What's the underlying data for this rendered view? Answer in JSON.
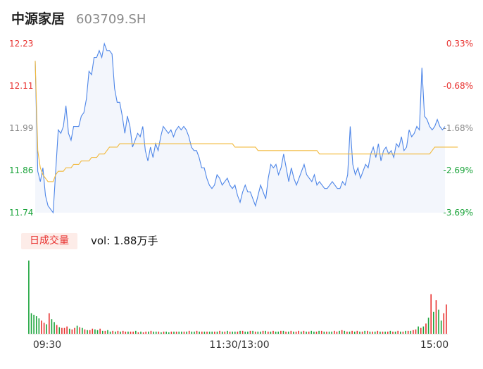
{
  "header": {
    "name": "中源家居",
    "code": "603709.SH"
  },
  "volume_badge": "日成交量",
  "volume_text": "vol: 1.88万手",
  "colors": {
    "price_line": "#4e86e8",
    "avg_line": "#f2b93b",
    "up": "#e8312f",
    "down": "#1aa33a",
    "neutral": "#8a8a8a",
    "fill": "#f3f6fc"
  },
  "chart_data": [
    {
      "type": "line",
      "x_range": [
        "09:30",
        "15:00"
      ],
      "x_tick_labels": [
        "09:30",
        "11:30/13:00",
        "15:00"
      ],
      "y_tick_labels": [
        "12.23",
        "12.11",
        "11.99",
        "11.86",
        "11.74"
      ],
      "y2_tick_labels": [
        "0.33%",
        "-0.68%",
        "-1.68%",
        "-2.69%",
        "-3.69%"
      ],
      "ylim": [
        11.74,
        12.23
      ],
      "series": [
        {
          "values": [
            12.18,
            11.86,
            11.83,
            11.87,
            11.79,
            11.76,
            11.75,
            11.74,
            11.86,
            11.98,
            11.97,
            11.99,
            12.05,
            11.97,
            11.95,
            11.99,
            11.99,
            11.99,
            12.02,
            12.03,
            12.07,
            12.15,
            12.14,
            12.19,
            12.19,
            12.21,
            12.19,
            12.23,
            12.21,
            12.21,
            12.2,
            12.1,
            12.06,
            12.06,
            12.02,
            11.97,
            12.02,
            11.99,
            11.93,
            11.95,
            11.97,
            11.96,
            11.99,
            11.92,
            11.89,
            11.93,
            11.9,
            11.94,
            11.92,
            11.96,
            11.99,
            11.98,
            11.97,
            11.98,
            11.96,
            11.98,
            11.99,
            11.98,
            11.99,
            11.98,
            11.96,
            11.93,
            11.92,
            11.92,
            11.9,
            11.87,
            11.87,
            11.84,
            11.82,
            11.81,
            11.82,
            11.85,
            11.84,
            11.82,
            11.83,
            11.84,
            11.82,
            11.81,
            11.82,
            11.79,
            11.77,
            11.8,
            11.82,
            11.8,
            11.8,
            11.78,
            11.76,
            11.79,
            11.82,
            11.8,
            11.78,
            11.84,
            11.88,
            11.87,
            11.88,
            11.85,
            11.87,
            11.91,
            11.87,
            11.83,
            11.87,
            11.84,
            11.82,
            11.84,
            11.86,
            11.88,
            11.85,
            11.84,
            11.83,
            11.85,
            11.82,
            11.83,
            11.82,
            11.81,
            11.81,
            11.82,
            11.83,
            11.82,
            11.81,
            11.81,
            11.83,
            11.82,
            11.85,
            11.99,
            11.88,
            11.85,
            11.87,
            11.84,
            11.86,
            11.88,
            11.87,
            11.91,
            11.93,
            11.9,
            11.94,
            11.89,
            11.92,
            11.93,
            11.91,
            11.92,
            11.9,
            11.94,
            11.93,
            11.96,
            11.92,
            11.93,
            11.98,
            11.96,
            11.97,
            11.99,
            11.98,
            12.16,
            12.02,
            12.01,
            11.99,
            11.98,
            11.99,
            12.01,
            11.99,
            11.98,
            11.99
          ],
          "color": "#4e86e8"
        },
        {
          "values": [
            12.18,
            11.92,
            11.87,
            11.85,
            11.84,
            11.83,
            11.83,
            11.83,
            11.85,
            11.86,
            11.86,
            11.86,
            11.87,
            11.87,
            11.87,
            11.88,
            11.88,
            11.88,
            11.89,
            11.89,
            11.89,
            11.89,
            11.9,
            11.9,
            11.9,
            11.91,
            11.91,
            11.91,
            11.92,
            11.93,
            11.93,
            11.93,
            11.93,
            11.94,
            11.94,
            11.94,
            11.94,
            11.94,
            11.94,
            11.94,
            11.94,
            11.94,
            11.94,
            11.94,
            11.94,
            11.94,
            11.94,
            11.94,
            11.94,
            11.94,
            11.94,
            11.94,
            11.94,
            11.94,
            11.94,
            11.94,
            11.94,
            11.94,
            11.94,
            11.94,
            11.94,
            11.94,
            11.94,
            11.94,
            11.94,
            11.94,
            11.94,
            11.94,
            11.94,
            11.94,
            11.94,
            11.94,
            11.94,
            11.94,
            11.94,
            11.94,
            11.94,
            11.94,
            11.93,
            11.93,
            11.93,
            11.93,
            11.93,
            11.93,
            11.93,
            11.93,
            11.93,
            11.92,
            11.92,
            11.92,
            11.92,
            11.92,
            11.92,
            11.92,
            11.92,
            11.92,
            11.92,
            11.92,
            11.92,
            11.92,
            11.92,
            11.92,
            11.92,
            11.92,
            11.92,
            11.92,
            11.92,
            11.92,
            11.92,
            11.92,
            11.92,
            11.91,
            11.91,
            11.91,
            11.91,
            11.91,
            11.91,
            11.91,
            11.91,
            11.91,
            11.91,
            11.91,
            11.91,
            11.91,
            11.91,
            11.91,
            11.91,
            11.91,
            11.91,
            11.91,
            11.91,
            11.91,
            11.91,
            11.91,
            11.91,
            11.91,
            11.91,
            11.91,
            11.91,
            11.91,
            11.91,
            11.91,
            11.91,
            11.91,
            11.91,
            11.91,
            11.91,
            11.91,
            11.91,
            11.91,
            11.91,
            11.91,
            11.91,
            11.91,
            11.91,
            11.92,
            11.93,
            11.93,
            11.93,
            11.93,
            11.93,
            11.93,
            11.93,
            11.93,
            11.93,
            11.93
          ],
          "color": "#f2b93b"
        }
      ]
    },
    {
      "type": "bar",
      "x_range": [
        "09:30",
        "15:00"
      ],
      "values": [
        100,
        28,
        26,
        24,
        21,
        18,
        15,
        13,
        28,
        20,
        16,
        12,
        9,
        8,
        8,
        10,
        7,
        6,
        8,
        11,
        9,
        8,
        6,
        5,
        5,
        7,
        6,
        5,
        7,
        4,
        4,
        5,
        3,
        4,
        3,
        4,
        3,
        4,
        3,
        3,
        3,
        3,
        4,
        2,
        3,
        2,
        3,
        3,
        4,
        3,
        3,
        3,
        2,
        3,
        3,
        2,
        3,
        3,
        3,
        3,
        3,
        3,
        3,
        4,
        3,
        3,
        4,
        3,
        3,
        3,
        3,
        3,
        3,
        3,
        3,
        4,
        3,
        3,
        4,
        3,
        3,
        3,
        3,
        4,
        4,
        3,
        3,
        4,
        4,
        3,
        3,
        3,
        4,
        4,
        3,
        3,
        4,
        3,
        3,
        4,
        4,
        3,
        3,
        4,
        3,
        3,
        4,
        3,
        4,
        3,
        3,
        4,
        3,
        3,
        4,
        4,
        3,
        3,
        3,
        3,
        4,
        3,
        4,
        5,
        4,
        3,
        3,
        4,
        3,
        4,
        3,
        3,
        4,
        4,
        3,
        3,
        3,
        4,
        3,
        3,
        3,
        3,
        4,
        3,
        3,
        4,
        3,
        3,
        4,
        4,
        4,
        5,
        6,
        10,
        8,
        10,
        14,
        22,
        54,
        30,
        46,
        33,
        18,
        28,
        40
      ],
      "colors": [
        "down",
        "down",
        "down",
        "down",
        "down",
        "up",
        "up",
        "down",
        "up",
        "down",
        "down",
        "up",
        "down",
        "up",
        "up",
        "up",
        "down",
        "up",
        "up",
        "down",
        "up",
        "down",
        "up",
        "down",
        "up",
        "up",
        "down",
        "down",
        "up",
        "down",
        "up",
        "down",
        "down",
        "up",
        "down",
        "up",
        "down",
        "up",
        "up",
        "down",
        "up",
        "up",
        "down",
        "up",
        "down",
        "up",
        "up",
        "down",
        "up",
        "down",
        "down",
        "up",
        "down",
        "up",
        "down",
        "down",
        "up",
        "down",
        "up",
        "down",
        "down",
        "up",
        "down",
        "up",
        "down",
        "down",
        "up",
        "down",
        "up",
        "down",
        "up",
        "down",
        "down",
        "up",
        "down",
        "up",
        "down",
        "up",
        "down",
        "up",
        "down",
        "down",
        "up",
        "down",
        "up",
        "down",
        "down",
        "up",
        "down",
        "up",
        "down",
        "down",
        "up",
        "down",
        "up",
        "down",
        "up",
        "down",
        "down",
        "up",
        "down",
        "up",
        "down",
        "up",
        "down",
        "up",
        "up",
        "down",
        "up",
        "down",
        "up",
        "down",
        "down",
        "up",
        "down",
        "up",
        "down",
        "up",
        "down",
        "down",
        "up",
        "up",
        "down",
        "up",
        "down",
        "up",
        "down",
        "up",
        "down",
        "up",
        "down",
        "up",
        "down",
        "up",
        "down",
        "up",
        "down",
        "up",
        "down",
        "up",
        "down",
        "up",
        "down",
        "up",
        "down",
        "up",
        "down",
        "up",
        "down",
        "up",
        "down",
        "up",
        "up",
        "down",
        "up",
        "down",
        "up",
        "down",
        "up",
        "down",
        "up",
        "down",
        "down",
        "up",
        "up"
      ]
    }
  ]
}
